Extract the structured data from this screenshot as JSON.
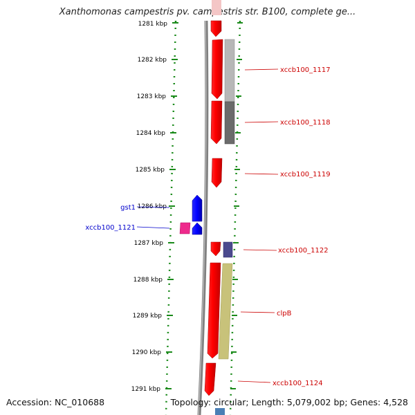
{
  "header": {
    "title": "Xanthomonas campestris pv. campestris str. B100, complete ge..."
  },
  "footer": {
    "accession": "Accession: NC_010688",
    "topology": "Topology: circular; Length: 5,079,002 bp; Genes: 4,528"
  },
  "map": {
    "ticks": [
      "1281 kbp",
      "1282 kbp",
      "1283 kbp",
      "1284 kbp",
      "1285 kbp",
      "1286 kbp",
      "1287 kbp",
      "1288 kbp",
      "1289 kbp",
      "1290 kbp",
      "1291 kbp"
    ],
    "gene_labels": [
      {
        "text": "xccb100_1117",
        "color": "#cc0000"
      },
      {
        "text": "xccb100_1118",
        "color": "#cc0000"
      },
      {
        "text": "xccb100_1119",
        "color": "#cc0000"
      },
      {
        "text": "gst1",
        "color": "#0000cc"
      },
      {
        "text": "xccb100_1121",
        "color": "#0000cc"
      },
      {
        "text": "xccb100_1122",
        "color": "#cc0000"
      },
      {
        "text": "clpB",
        "color": "#cc0000"
      },
      {
        "text": "xccb100_1124",
        "color": "#cc0000"
      }
    ],
    "colors": {
      "forward_strand": "#ff0000",
      "reverse_strand": "#0000ff",
      "backbone": "#808080",
      "tick_dots": "#1a8a1a"
    }
  }
}
